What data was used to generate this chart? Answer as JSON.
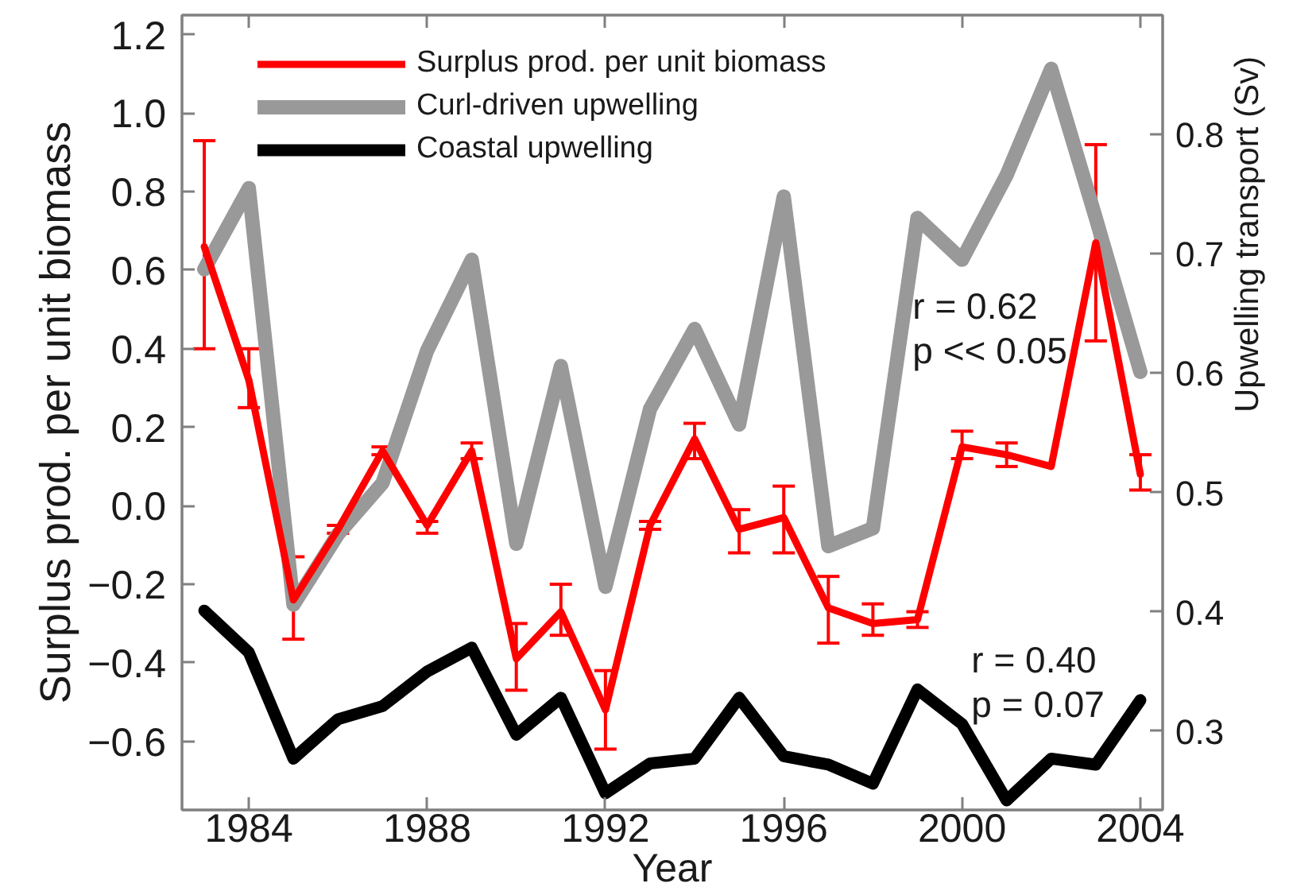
{
  "chart_data": {
    "type": "line",
    "xlabel": "Year",
    "ylabel": "Surplus prod. per unit biomass",
    "y2label": "Upwelling transport (Sv)",
    "x": [
      1983,
      1984,
      1985,
      1986,
      1987,
      1988,
      1989,
      1990,
      1991,
      1992,
      1993,
      1994,
      1995,
      1996,
      1997,
      1998,
      1999,
      2000,
      2001,
      2002,
      2003,
      2004
    ],
    "xlim": [
      1982.5,
      2004.5
    ],
    "xticks": [
      1984,
      1988,
      1992,
      1996,
      2000,
      2004
    ],
    "ylim": [
      -0.775,
      1.25
    ],
    "yticks": [
      {
        "value": -0.6,
        "label": "−0.6"
      },
      {
        "value": -0.4,
        "label": "−0.4"
      },
      {
        "value": -0.2,
        "label": "−0.2"
      },
      {
        "value": 0,
        "label": "0.0"
      },
      0.2,
      0.4,
      0.6,
      0.8,
      {
        "value": 1,
        "label": "1.0"
      },
      1.2
    ],
    "y2lim": [
      0.234,
      0.9
    ],
    "y2ticks": [
      0.3,
      0.4,
      0.5,
      0.6,
      0.7,
      0.8
    ],
    "legend": "top left",
    "line_style": "solid",
    "annotations": [
      "r = 0.62\np << 0.05",
      "r = 0.40\np = 0.07"
    ],
    "series": [
      {
        "name": "Surplus prod. per unit biomass",
        "color": "#ff0000",
        "values": [
          0.66,
          0.32,
          -0.24,
          -0.06,
          0.14,
          -0.05,
          0.14,
          -0.39,
          -0.27,
          -0.52,
          -0.05,
          0.17,
          -0.06,
          -0.03,
          -0.26,
          -0.3,
          -0.29,
          0.15,
          0.13,
          0.1,
          0.67,
          0.08
        ],
        "errors": [
          [
            0.4,
            0.93
          ],
          [
            0.25,
            0.4
          ],
          [
            -0.34,
            -0.13
          ],
          [
            -0.07,
            -0.05
          ],
          [
            0.13,
            0.15
          ],
          [
            -0.07,
            -0.04
          ],
          [
            0.12,
            0.16
          ],
          [
            -0.47,
            -0.3
          ],
          [
            -0.33,
            -0.2
          ],
          [
            -0.62,
            -0.42
          ],
          [
            -0.06,
            -0.04
          ],
          [
            0.12,
            0.21
          ],
          [
            -0.12,
            -0.01
          ],
          [
            -0.12,
            0.05
          ],
          [
            -0.35,
            -0.18
          ],
          [
            -0.33,
            -0.25
          ],
          [
            -0.31,
            -0.27
          ],
          [
            0.12,
            0.19
          ],
          [
            0.1,
            0.16
          ],
          null,
          [
            0.42,
            0.92
          ],
          [
            0.04,
            0.13
          ]
        ]
      },
      {
        "name": "Curl-driven upwelling",
        "color": "#999999",
        "axis": "y2",
        "values": [
          0.687,
          0.755,
          0.406,
          0.465,
          0.508,
          0.619,
          0.695,
          0.457,
          0.606,
          0.421,
          0.57,
          0.637,
          0.557,
          0.748,
          0.455,
          0.47,
          0.73,
          0.695,
          0.766,
          0.855,
          0.73,
          0.601
        ]
      },
      {
        "name": "Coastal upwelling",
        "color": "#000000",
        "axis": "y2",
        "values": [
          0.401,
          0.366,
          0.277,
          0.31,
          0.321,
          0.35,
          0.37,
          0.297,
          0.328,
          0.248,
          0.273,
          0.277,
          0.328,
          0.279,
          0.272,
          0.256,
          0.335,
          0.306,
          0.242,
          0.277,
          0.272,
          0.326
        ]
      }
    ]
  }
}
